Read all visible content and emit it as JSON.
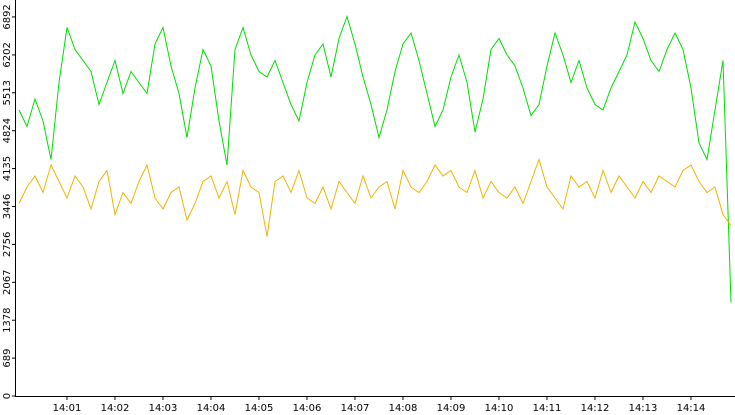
{
  "chart_data": {
    "type": "line",
    "categories": [
      null,
      null,
      null,
      null,
      null,
      null,
      "14:01",
      null,
      null,
      null,
      null,
      null,
      "14:02",
      null,
      null,
      null,
      null,
      null,
      "14:03",
      null,
      null,
      null,
      null,
      null,
      "14:04",
      null,
      null,
      null,
      null,
      null,
      "14:05",
      null,
      null,
      null,
      null,
      null,
      "14:06",
      null,
      null,
      null,
      null,
      null,
      "14:07",
      null,
      null,
      null,
      null,
      null,
      "14:08",
      null,
      null,
      null,
      null,
      null,
      "14:09",
      null,
      null,
      null,
      null,
      null,
      "14:10",
      null,
      null,
      null,
      null,
      null,
      "14:11",
      null,
      null,
      null,
      null,
      null,
      "14:12",
      null,
      null,
      null,
      null,
      null,
      "14:13",
      null,
      null,
      null,
      null,
      null,
      "14:14",
      null,
      null,
      null,
      null,
      null
    ],
    "series": [
      {
        "color": "#00dd00",
        "values": [
          5200,
          4900,
          5400,
          5000,
          4300,
          5700,
          6700,
          6300,
          6100,
          5900,
          5300,
          5700,
          6100,
          5500,
          5900,
          5700,
          5500,
          6400,
          6700,
          6000,
          5500,
          4700,
          5600,
          6300,
          6000,
          5000,
          4200,
          6300,
          6700,
          6200,
          5900,
          5800,
          6100,
          5700,
          5300,
          5000,
          5700,
          6200,
          6400,
          5800,
          6500,
          6900,
          6400,
          5800,
          5300,
          4700,
          5200,
          5900,
          6400,
          6600,
          6100,
          5500,
          4900,
          5200,
          5800,
          6200,
          5700,
          4800,
          5400,
          6300,
          6500,
          6200,
          6000,
          5600,
          5100,
          5300,
          6000,
          6600,
          6200,
          5700,
          6100,
          5600,
          5300,
          5200,
          5600,
          5900,
          6200,
          6800,
          6500,
          6100,
          5900,
          6300,
          6600,
          6300,
          5600,
          4600,
          4300,
          5200,
          6100,
          1700
        ]
      },
      {
        "color": "#f0b400",
        "values": [
          3500,
          3800,
          4000,
          3700,
          4200,
          3900,
          3600,
          4000,
          3800,
          3400,
          3900,
          4100,
          3300,
          3700,
          3500,
          3900,
          4200,
          3600,
          3400,
          3700,
          3800,
          3200,
          3500,
          3900,
          4000,
          3600,
          3900,
          3300,
          4100,
          3800,
          3700,
          2900,
          3900,
          4000,
          3700,
          4100,
          3600,
          3500,
          3800,
          3400,
          3900,
          3700,
          3500,
          4000,
          3600,
          3800,
          3900,
          3400,
          4100,
          3800,
          3700,
          3900,
          4200,
          4000,
          4100,
          3800,
          3700,
          4100,
          3600,
          3900,
          3700,
          3600,
          3800,
          3500,
          3900,
          4300,
          3800,
          3600,
          3400,
          4000,
          3800,
          3900,
          3600,
          4100,
          3700,
          4000,
          3800,
          3600,
          3900,
          3700,
          4000,
          3900,
          3800,
          4100,
          4200,
          3900,
          3700,
          3800,
          3300,
          3100
        ]
      }
    ],
    "ylim": [
      0,
      7200
    ],
    "yticks": [
      0,
      689,
      1378,
      2067,
      2756,
      3446,
      4135,
      4824,
      5513,
      6202,
      6892
    ]
  }
}
